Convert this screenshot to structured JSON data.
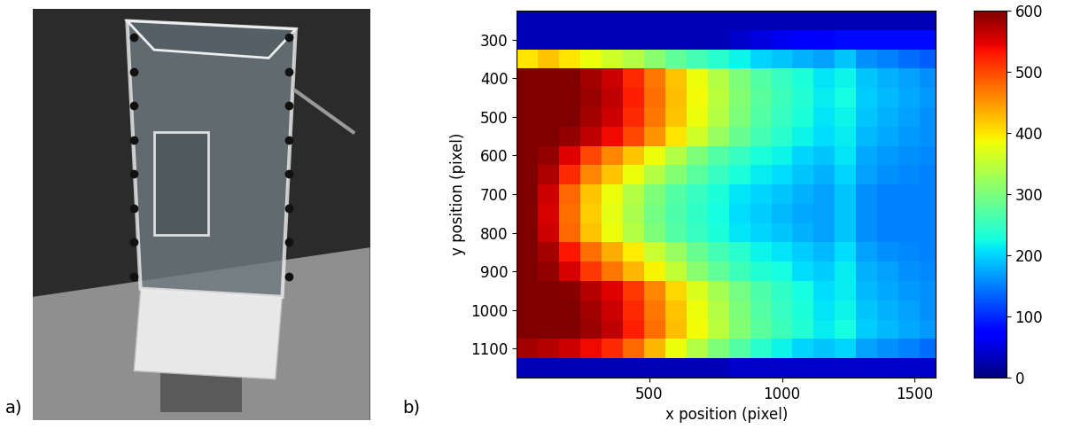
{
  "panel_labels": [
    "a)",
    "b)"
  ],
  "chart_data": {
    "type": "heatmap",
    "color": "jet",
    "xlabel": "x position (pixel)",
    "ylabel": "y position (pixel)",
    "xlim": [
      0,
      1580
    ],
    "ylim": [
      1175,
      225
    ],
    "xticks": [
      500,
      1000,
      1500
    ],
    "yticks": [
      300,
      400,
      500,
      600,
      700,
      800,
      900,
      1000,
      1100
    ],
    "x_edges": [
      0,
      80,
      160,
      240,
      320,
      400,
      480,
      560,
      640,
      720,
      800,
      880,
      960,
      1040,
      1120,
      1200,
      1280,
      1360,
      1440,
      1520,
      1600
    ],
    "y_edges": [
      225,
      275,
      325,
      375,
      425,
      475,
      525,
      575,
      625,
      675,
      725,
      775,
      825,
      875,
      925,
      975,
      1025,
      1075,
      1125,
      1175
    ],
    "cells": [
      [
        30,
        30,
        30,
        30,
        30,
        30,
        30,
        30,
        30,
        30,
        30,
        30,
        30,
        30,
        30,
        30,
        30,
        30,
        30,
        30
      ],
      [
        30,
        30,
        30,
        30,
        30,
        30,
        30,
        30,
        30,
        30,
        40,
        50,
        60,
        70,
        70,
        80,
        80,
        80,
        80,
        80
      ],
      [
        400,
        420,
        400,
        380,
        360,
        340,
        310,
        280,
        260,
        240,
        220,
        200,
        190,
        180,
        170,
        190,
        160,
        150,
        140,
        130
      ],
      [
        620,
        610,
        600,
        580,
        560,
        520,
        470,
        420,
        380,
        340,
        300,
        270,
        250,
        230,
        210,
        220,
        190,
        180,
        170,
        160
      ],
      [
        620,
        610,
        600,
        585,
        565,
        525,
        475,
        425,
        385,
        345,
        305,
        275,
        255,
        235,
        215,
        225,
        195,
        185,
        175,
        165
      ],
      [
        615,
        605,
        600,
        580,
        560,
        520,
        470,
        420,
        380,
        340,
        300,
        270,
        250,
        230,
        210,
        220,
        190,
        180,
        170,
        160
      ],
      [
        610,
        600,
        590,
        565,
        540,
        500,
        450,
        400,
        360,
        320,
        285,
        260,
        240,
        220,
        205,
        215,
        185,
        175,
        165,
        160
      ],
      [
        610,
        590,
        550,
        500,
        460,
        420,
        380,
        340,
        300,
        270,
        250,
        230,
        220,
        200,
        190,
        210,
        175,
        165,
        160,
        155
      ],
      [
        605,
        575,
        520,
        460,
        420,
        380,
        340,
        305,
        275,
        250,
        230,
        215,
        205,
        190,
        180,
        200,
        170,
        160,
        155,
        150
      ],
      [
        600,
        560,
        480,
        420,
        380,
        340,
        300,
        270,
        250,
        230,
        210,
        200,
        190,
        180,
        170,
        190,
        160,
        150,
        150,
        150
      ],
      [
        600,
        555,
        475,
        415,
        375,
        335,
        295,
        265,
        245,
        225,
        205,
        195,
        185,
        175,
        170,
        190,
        160,
        150,
        150,
        150
      ],
      [
        600,
        560,
        480,
        420,
        380,
        340,
        300,
        270,
        250,
        230,
        210,
        200,
        190,
        180,
        170,
        190,
        160,
        150,
        150,
        150
      ],
      [
        605,
        580,
        530,
        475,
        435,
        395,
        355,
        320,
        285,
        260,
        240,
        220,
        210,
        195,
        185,
        205,
        170,
        160,
        155,
        150
      ],
      [
        610,
        590,
        555,
        510,
        470,
        430,
        390,
        350,
        310,
        280,
        255,
        235,
        225,
        205,
        195,
        215,
        180,
        170,
        160,
        155
      ],
      [
        615,
        605,
        595,
        570,
        550,
        510,
        460,
        410,
        370,
        330,
        295,
        265,
        245,
        225,
        205,
        215,
        185,
        175,
        165,
        160
      ],
      [
        620,
        610,
        600,
        580,
        560,
        520,
        470,
        420,
        380,
        340,
        300,
        270,
        250,
        230,
        210,
        220,
        190,
        180,
        170,
        160
      ],
      [
        620,
        610,
        600,
        585,
        565,
        525,
        475,
        425,
        385,
        345,
        305,
        275,
        255,
        235,
        215,
        225,
        195,
        185,
        175,
        165
      ],
      [
        580,
        570,
        560,
        540,
        520,
        480,
        430,
        380,
        340,
        300,
        270,
        240,
        220,
        200,
        190,
        200,
        170,
        160,
        150,
        140
      ],
      [
        30,
        30,
        30,
        30,
        30,
        30,
        30,
        30,
        30,
        30,
        40,
        40,
        40,
        40,
        40,
        40,
        40,
        40,
        40,
        40
      ]
    ],
    "colorbar_range": [
      0,
      600
    ],
    "colorbar_ticks": [
      0,
      100,
      200,
      300,
      400,
      500,
      600
    ]
  }
}
